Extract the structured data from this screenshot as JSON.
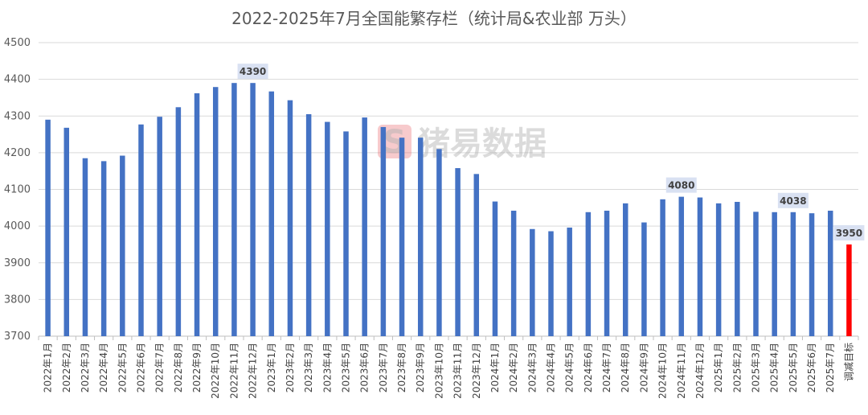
{
  "chart_data": {
    "type": "bar",
    "title": "2022-2025年7月全国能繁存栏（统计局&农业部 万头）",
    "ylim": [
      3700,
      4500
    ],
    "yticks": [
      3700,
      3800,
      3900,
      4000,
      4100,
      4200,
      4300,
      4400,
      4500
    ],
    "grid": true,
    "categories": [
      "2022年1月",
      "2022年2月",
      "2022年3月",
      "2022年4月",
      "2022年5月",
      "2022年6月",
      "2022年7月",
      "2022年8月",
      "2022年9月",
      "2022年10月",
      "2022年11月",
      "2022年12月",
      "2023年1月",
      "2023年2月",
      "2023年3月",
      "2023年4月",
      "2023年5月",
      "2023年6月",
      "2023年7月",
      "2023年8月",
      "2023年9月",
      "2023年10月",
      "2023年11月",
      "2023年12月",
      "2024年1月",
      "2024年2月",
      "2024年3月",
      "2024年4月",
      "2024年5月",
      "2024年6月",
      "2024年7月",
      "2024年8月",
      "2024年9月",
      "2024年10月",
      "2024年11月",
      "2024年12月",
      "2025年1月",
      "2025年2月",
      "2025年3月",
      "2025年4月",
      "2025年5月",
      "2025年6月",
      "2025年7月",
      "调减目标"
    ],
    "values": [
      4290,
      4268,
      4185,
      4177,
      4192,
      4277,
      4298,
      4324,
      4362,
      4379,
      4390,
      4390,
      4367,
      4343,
      4305,
      4284,
      4258,
      4296,
      4270,
      4241,
      4241,
      4210,
      4158,
      4142,
      4067,
      4042,
      3992,
      3986,
      3996,
      4038,
      4042,
      4062,
      4010,
      4073,
      4080,
      4078,
      4062,
      4066,
      4039,
      4038,
      4038,
      4035,
      4042,
      3950
    ],
    "bar_colors": {
      "default": "#4472C4",
      "target": "#FF0000"
    },
    "data_labels": [
      {
        "index": 11,
        "text": "4390"
      },
      {
        "index": 34,
        "text": "4080"
      },
      {
        "index": 40,
        "text": "4038"
      },
      {
        "index": 43,
        "text": "3950"
      }
    ],
    "label_bg": "#D9E1F2",
    "watermark": {
      "text": "猪易数据",
      "logo_letter": "S",
      "logo_color": "#E7676E"
    }
  }
}
